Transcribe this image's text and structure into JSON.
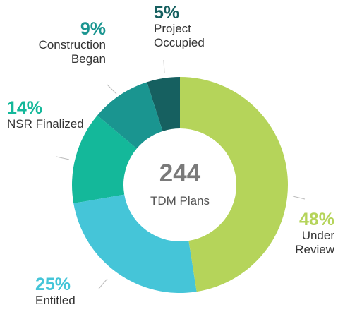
{
  "chart_data": {
    "type": "donut",
    "categories": [
      "Under Review",
      "Entitled",
      "NSR Finalized",
      "Construction Began",
      "Project Occupied"
    ],
    "values": [
      48,
      25,
      14,
      9,
      5
    ],
    "value_labels": [
      "48%",
      "25%",
      "14%",
      "9%",
      "5%"
    ],
    "colors": [
      "#b5d45a",
      "#45c5d8",
      "#14b89a",
      "#1a9590",
      "#166060"
    ],
    "center_value": 244,
    "center_label": "TDM Plans"
  }
}
